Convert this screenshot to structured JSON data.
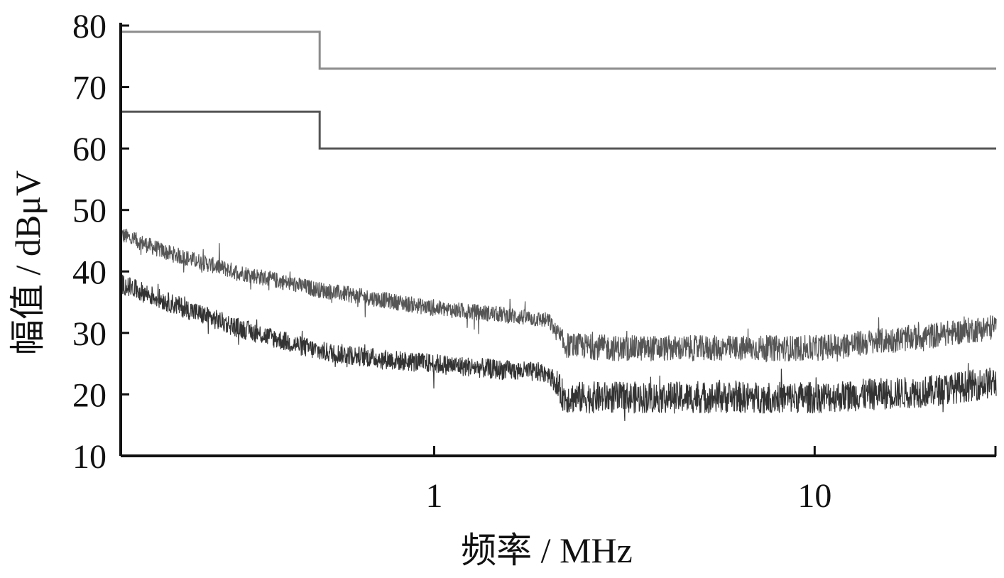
{
  "chart_data": {
    "type": "line",
    "xlabel": "频率 / MHz",
    "ylabel": "幅值 / dBμV",
    "xscale": "log",
    "xlim": [
      0.15,
      30
    ],
    "ylim": [
      10,
      80
    ],
    "yticks": [
      10,
      20,
      30,
      40,
      50,
      60,
      70,
      80
    ],
    "xticks": [
      {
        "value": 1,
        "label": "1"
      },
      {
        "value": 10,
        "label": "10"
      }
    ],
    "grid": false,
    "legend": "none",
    "series": [
      {
        "kind": "limit",
        "color": "#8c8c8c",
        "x": [
          0.15,
          0.5,
          0.5,
          30
        ],
        "y": [
          79,
          79,
          73,
          73
        ]
      },
      {
        "kind": "limit",
        "color": "#555555",
        "x": [
          0.15,
          0.5,
          0.5,
          30
        ],
        "y": [
          66,
          66,
          60,
          60
        ]
      },
      {
        "kind": "measurement",
        "color": "#555555",
        "x": [
          0.15,
          0.2,
          0.3,
          0.5,
          0.8,
          1.0,
          1.5,
          2.0,
          2.2,
          3.0,
          5.0,
          10.0,
          20.0,
          30.0
        ],
        "y": [
          46,
          43,
          40,
          37,
          35,
          34,
          33,
          32,
          28,
          27.5,
          27.5,
          27.5,
          29.5,
          31
        ],
        "noise": 1.3
      },
      {
        "kind": "measurement",
        "color": "#333333",
        "x": [
          0.15,
          0.2,
          0.3,
          0.5,
          0.8,
          1.0,
          1.5,
          2.0,
          2.2,
          3.0,
          5.0,
          10.0,
          20.0,
          30.0
        ],
        "y": [
          38,
          35,
          31,
          27,
          25.5,
          25,
          24,
          23.5,
          19.5,
          19.5,
          19.5,
          19.5,
          20.5,
          22
        ],
        "noise": 1.6
      }
    ]
  }
}
